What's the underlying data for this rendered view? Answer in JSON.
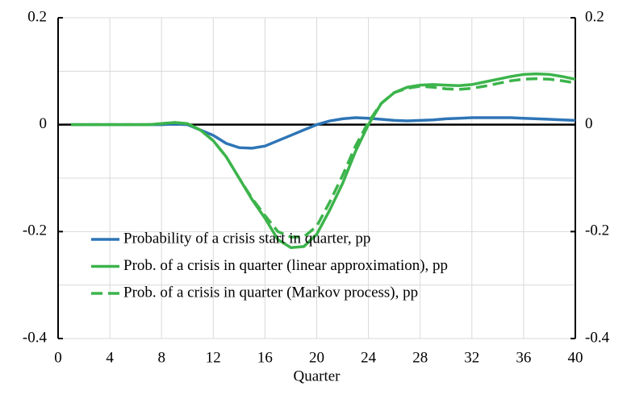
{
  "chart_data": {
    "type": "line",
    "xlabel": "Quarter",
    "x": [
      1,
      2,
      3,
      4,
      5,
      6,
      7,
      8,
      9,
      10,
      11,
      12,
      13,
      14,
      15,
      16,
      17,
      18,
      19,
      20,
      21,
      22,
      23,
      24,
      25,
      26,
      27,
      28,
      29,
      30,
      31,
      32,
      33,
      34,
      35,
      36,
      37,
      38,
      39,
      40
    ],
    "series": [
      {
        "name": "Probability of a crisis start in quarter, pp",
        "color": "#2e75b6",
        "dash": false,
        "values": [
          0,
          0,
          0,
          0,
          0,
          0,
          0,
          0,
          0.001,
          0,
          -0.01,
          -0.02,
          -0.035,
          -0.043,
          -0.044,
          -0.04,
          -0.03,
          -0.02,
          -0.01,
          0,
          0.007,
          0.011,
          0.013,
          0.012,
          0.01,
          0.008,
          0.007,
          0.008,
          0.009,
          0.011,
          0.012,
          0.013,
          0.013,
          0.013,
          0.013,
          0.012,
          0.011,
          0.01,
          0.009,
          0.008
        ]
      },
      {
        "name": "Prob. of a crisis in quarter (linear approximation), pp",
        "color": "#3cb44b",
        "dash": false,
        "values": [
          0,
          0,
          0,
          0,
          0,
          0,
          0,
          0.002,
          0.004,
          0.002,
          -0.01,
          -0.03,
          -0.06,
          -0.1,
          -0.14,
          -0.175,
          -0.215,
          -0.23,
          -0.228,
          -0.205,
          -0.16,
          -0.11,
          -0.05,
          0,
          0.04,
          0.06,
          0.07,
          0.074,
          0.075,
          0.074,
          0.073,
          0.075,
          0.08,
          0.085,
          0.09,
          0.094,
          0.095,
          0.094,
          0.09,
          0.085
        ]
      },
      {
        "name": "Prob. of a crisis in quarter (Markov process), pp",
        "color": "#3cb44b",
        "dash": true,
        "values": [
          0,
          0,
          0,
          0,
          0,
          0,
          0,
          0.002,
          0.004,
          0.002,
          -0.01,
          -0.03,
          -0.06,
          -0.1,
          -0.138,
          -0.17,
          -0.2,
          -0.21,
          -0.21,
          -0.19,
          -0.145,
          -0.095,
          -0.04,
          0.005,
          0.04,
          0.06,
          0.068,
          0.072,
          0.07,
          0.067,
          0.066,
          0.068,
          0.072,
          0.077,
          0.082,
          0.085,
          0.086,
          0.085,
          0.082,
          0.078
        ]
      }
    ],
    "xlim": [
      0,
      40
    ],
    "xticks": [
      0,
      4,
      8,
      12,
      16,
      20,
      24,
      28,
      32,
      36,
      40
    ],
    "ylim": [
      -0.4,
      0.2
    ],
    "yticks": [
      -0.4,
      -0.2,
      0,
      0.2
    ],
    "yminorgrid": [
      -0.3,
      -0.1,
      0.1
    ],
    "y2lim": [
      -0.4,
      0.2
    ],
    "y2ticks": [
      -0.4,
      -0.2,
      0,
      0.2
    ],
    "grid": true,
    "legend": "lower left"
  }
}
